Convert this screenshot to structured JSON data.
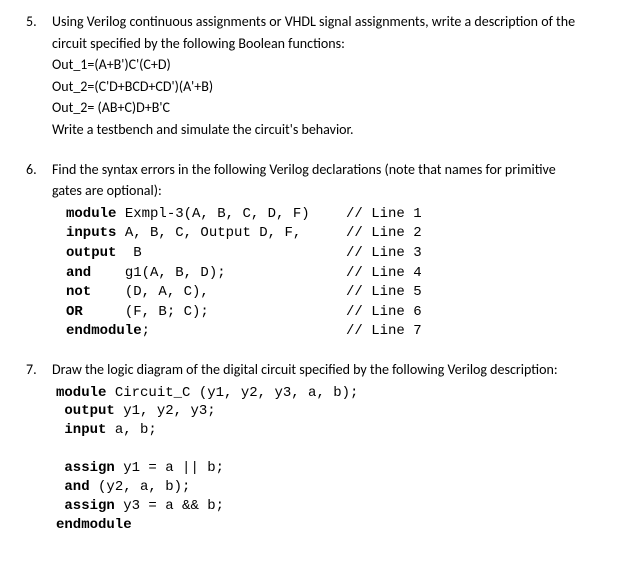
{
  "problems": [
    {
      "num": "5.",
      "lines": [
        "Using Verilog continuous assignments or VHDL signal assignments, write a description of the",
        "circuit specified by the following Boolean functions:",
        "Out_1=(A+B')C'(C+D)",
        "Out_2=(C'D+BCD+CD')(A'+B)",
        "Out_2= (AB+C)D+B'C",
        "Write a testbench and simulate the circuit's behavior."
      ]
    },
    {
      "num": "6.",
      "intro": [
        "Find the syntax errors in the following Verilog declarations (note that names for primitive",
        "gates are optional):"
      ],
      "code_rows": [
        {
          "kw": "module",
          "rest": " Exmpl-3(A, B, C, D, F)",
          "comment": "// Line 1"
        },
        {
          "kw": "inputs",
          "rest": " A, B, C, Output D, F,",
          "comment": "// Line 2"
        },
        {
          "kw": "output",
          "rest": "  B",
          "comment": "// Line 3"
        },
        {
          "kw": "and",
          "rest": "    g1(A, B, D);",
          "comment": "// Line 4"
        },
        {
          "kw": "not",
          "rest": "    (D, A, C),",
          "comment": "// Line 5"
        },
        {
          "kw": "OR",
          "rest": "     (F, B; C);",
          "comment": "// Line 6"
        },
        {
          "kw": "endmodule",
          "rest": ";",
          "comment": "// Line 7"
        }
      ]
    },
    {
      "num": "7.",
      "intro": [
        "Draw the logic diagram of the digital circuit specified by the following Verilog description:"
      ],
      "code_lines": [
        {
          "pre": "",
          "kw": "module",
          "rest": " Circuit_C (y1, y2, y3, a, b);"
        },
        {
          "pre": " ",
          "kw": "output",
          "rest": " y1, y2, y3;"
        },
        {
          "pre": " ",
          "kw": "input",
          "rest": " a, b;"
        },
        {
          "pre": "",
          "kw": "",
          "rest": ""
        },
        {
          "pre": " ",
          "kw": "assign",
          "rest": " y1 = a || b;"
        },
        {
          "pre": " ",
          "kw": "and",
          "rest": " (y2, a, b);"
        },
        {
          "pre": " ",
          "kw": "assign",
          "rest": " y3 = a && b;"
        },
        {
          "pre": "",
          "kw": "endmodule",
          "rest": ""
        }
      ]
    }
  ]
}
